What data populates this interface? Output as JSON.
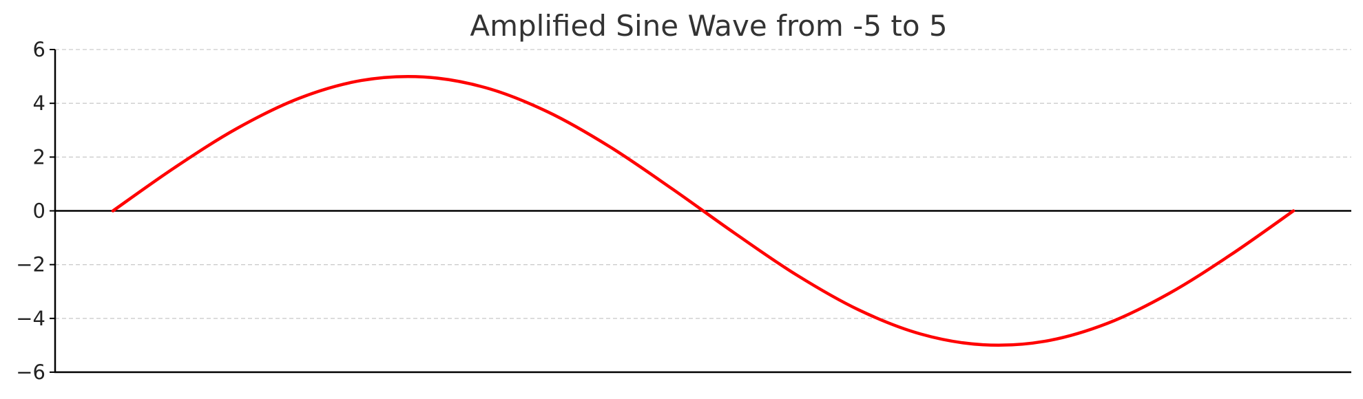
{
  "chart_data": {
    "type": "line",
    "title": "Amplified Sine Wave from -5 to 5",
    "xlabel": "",
    "ylabel": "",
    "xlim": [
      0,
      6.2832
    ],
    "ylim": [
      -6,
      6
    ],
    "yticks": [
      6,
      4,
      2,
      0,
      -2,
      -4,
      -6
    ],
    "ytick_labels": [
      "6",
      "4",
      "2",
      "0",
      "−2",
      "−4",
      "−6"
    ],
    "grid": "horizontal-dashed",
    "zero_line": true,
    "series": [
      {
        "color": "#ff0000",
        "x": [
          0,
          0.3307,
          0.6614,
          0.9921,
          1.3228,
          1.6535,
          1.9842,
          2.3149,
          2.6456,
          2.9762,
          3.3069,
          3.6376,
          3.9683,
          4.299,
          4.6297,
          4.9604,
          5.2911,
          5.6218,
          5.9525,
          6.2832
        ],
        "y": [
          0,
          1.62,
          3.07,
          4.19,
          4.85,
          4.98,
          4.58,
          3.68,
          2.38,
          0.82,
          -0.82,
          -2.38,
          -3.68,
          -4.58,
          -4.98,
          -4.85,
          -4.19,
          -3.07,
          -1.62,
          0
        ]
      }
    ]
  }
}
